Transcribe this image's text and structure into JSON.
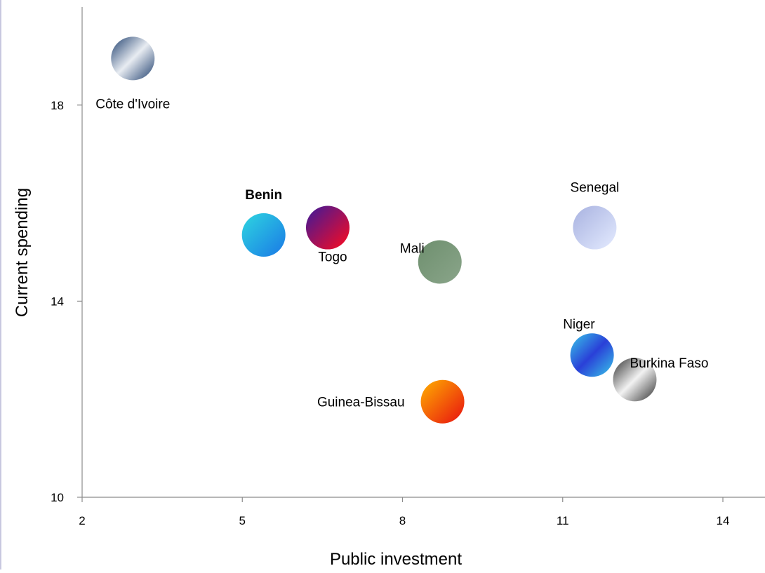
{
  "chart_data": {
    "type": "scatter",
    "title": "",
    "xlabel": "Public investment",
    "ylabel": "Current spending",
    "xlim": [
      2,
      14
    ],
    "ylim": [
      10,
      20
    ],
    "x_ticks": [
      2,
      5,
      8,
      11,
      14
    ],
    "y_ticks": [
      10,
      14,
      18
    ],
    "x_tick_labels": [
      "2",
      "5",
      "8",
      "11",
      "14"
    ],
    "y_tick_labels": [
      "10",
      "14",
      "18"
    ],
    "grid": false,
    "legend": "none",
    "points": [
      {
        "label": "Côte d'Ivoire",
        "x": 2.95,
        "y": 18.95,
        "color_a": "#1f3f6e",
        "color_b": "#e8ecf2",
        "bold": false,
        "label_pos": "below"
      },
      {
        "label": "Benin",
        "x": 5.4,
        "y": 15.35,
        "color_a": "#2ed6e0",
        "color_b": "#1a78e6",
        "bold": true,
        "label_pos": "above"
      },
      {
        "label": "Togo",
        "x": 6.6,
        "y": 15.5,
        "color_a": "#3a1a9c",
        "color_b": "#ff0a1e",
        "bold": false,
        "label_pos": "below-right"
      },
      {
        "label": "Mali",
        "x": 8.7,
        "y": 14.8,
        "color_a": "#6e8f6e",
        "color_b": "#8aa58a",
        "bold": false,
        "label_pos": "above-left"
      },
      {
        "label": "Senegal",
        "x": 11.6,
        "y": 15.5,
        "color_a": "#a8b2e0",
        "color_b": "#e4ebff",
        "bold": false,
        "label_pos": "above"
      },
      {
        "label": "Niger",
        "x": 11.55,
        "y": 12.9,
        "color_a": "#38c8e8",
        "color_b": "#2a40d8",
        "bold": false,
        "label_pos": "above-left"
      },
      {
        "label": "Burkina Faso",
        "x": 12.35,
        "y": 12.4,
        "color_a": "#303030",
        "color_b": "#f2f2f2",
        "bold": false,
        "label_pos": "above-right"
      },
      {
        "label": "Guinea-Bissau",
        "x": 8.75,
        "y": 11.95,
        "color_a": "#ffb000",
        "color_b": "#e81010",
        "bold": false,
        "label_pos": "left"
      }
    ]
  }
}
